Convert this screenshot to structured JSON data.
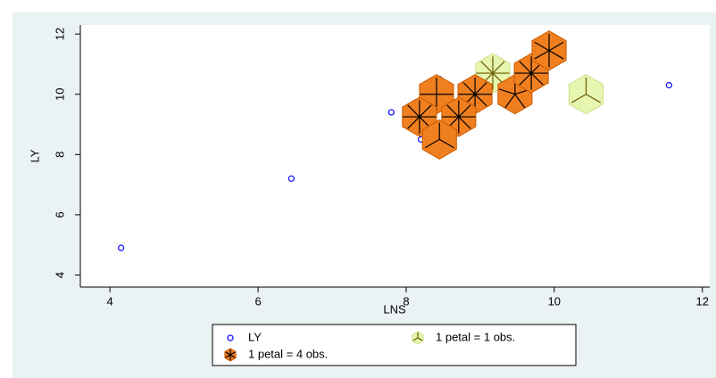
{
  "chart_data": {
    "type": "sunflower",
    "x_label": "LNS",
    "y_label": "LY",
    "xlim": [
      3.6,
      12.1
    ],
    "ylim": [
      3.6,
      12.3
    ],
    "xticks": [
      4,
      6,
      8,
      10,
      12
    ],
    "yticks": [
      4,
      6,
      8,
      10,
      12
    ],
    "grid": false,
    "legend": "bottom",
    "series": [
      {
        "name": "LY",
        "color": "#1a1aff",
        "x": [
          4.15,
          6.45,
          7.8,
          8.2,
          8.45,
          9.75,
          11.55
        ],
        "values": [
          4.9,
          7.2,
          9.4,
          8.5,
          10.5,
          11.3,
          10.3
        ]
      },
      {
        "name": "1 petal = 1 obs.",
        "color": "#e6f5b0",
        "x": [
          9.17,
          10.43
        ],
        "values": [
          10.7,
          10.0
        ],
        "petals": [
          8,
          3
        ]
      },
      {
        "name": "1 petal = 4 obs.",
        "color": "#f07f1f",
        "x": [
          8.41,
          8.93,
          9.47,
          9.69,
          9.93,
          8.18,
          8.71,
          8.45
        ],
        "values": [
          10.0,
          10.0,
          10.0,
          10.7,
          11.45,
          9.25,
          9.25,
          8.5
        ],
        "petals": [
          4,
          8,
          5,
          8,
          6,
          8,
          8,
          3
        ]
      }
    ]
  }
}
